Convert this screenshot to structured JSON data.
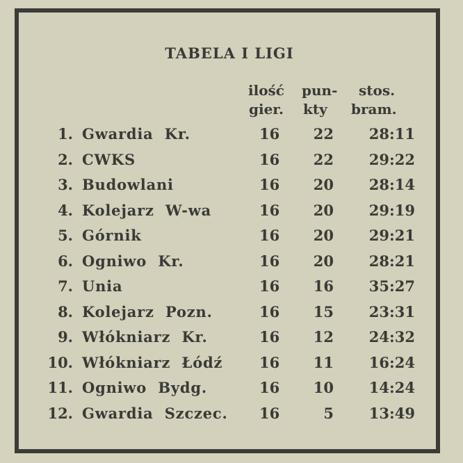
{
  "title": "TABELA I LIGI",
  "headers": {
    "games_1": "ilość",
    "games_2": "gier.",
    "points_1": "pun-",
    "points_2": "kty",
    "goals_1": "stos.",
    "goals_2": "bram."
  },
  "rows": [
    {
      "pos": "1.",
      "team": "Gwardia  Kr.",
      "games": "16",
      "points": "22",
      "goals": "28:11"
    },
    {
      "pos": "2.",
      "team": "CWKS",
      "games": "16",
      "points": "22",
      "goals": "29:22"
    },
    {
      "pos": "3.",
      "team": "Budowlani",
      "games": "16",
      "points": "20",
      "goals": "28:14"
    },
    {
      "pos": "4.",
      "team": "Kolejarz  W-wa",
      "games": "16",
      "points": "20",
      "goals": "29:19"
    },
    {
      "pos": "5.",
      "team": "Górnik",
      "games": "16",
      "points": "20",
      "goals": "29:21"
    },
    {
      "pos": "6.",
      "team": "Ogniwo  Kr.",
      "games": "16",
      "points": "20",
      "goals": "28:21"
    },
    {
      "pos": "7.",
      "team": "Unia",
      "games": "16",
      "points": "16",
      "goals": "35:27"
    },
    {
      "pos": "8.",
      "team": "Kolejarz  Pozn.",
      "games": "16",
      "points": "15",
      "goals": "23:31"
    },
    {
      "pos": "9.",
      "team": "Włókniarz  Kr.",
      "games": "16",
      "points": "12",
      "goals": "24:32"
    },
    {
      "pos": "10.",
      "team": "Włókniarz  Łódź",
      "games": "16",
      "points": "11",
      "goals": "16:24"
    },
    {
      "pos": "11.",
      "team": "Ogniwo  Bydg.",
      "games": "16",
      "points": "10",
      "goals": "14:24"
    },
    {
      "pos": "12.",
      "team": "Gwardia  Szczec.",
      "games": "16",
      "points": "5",
      "goals": "13:49"
    }
  ]
}
